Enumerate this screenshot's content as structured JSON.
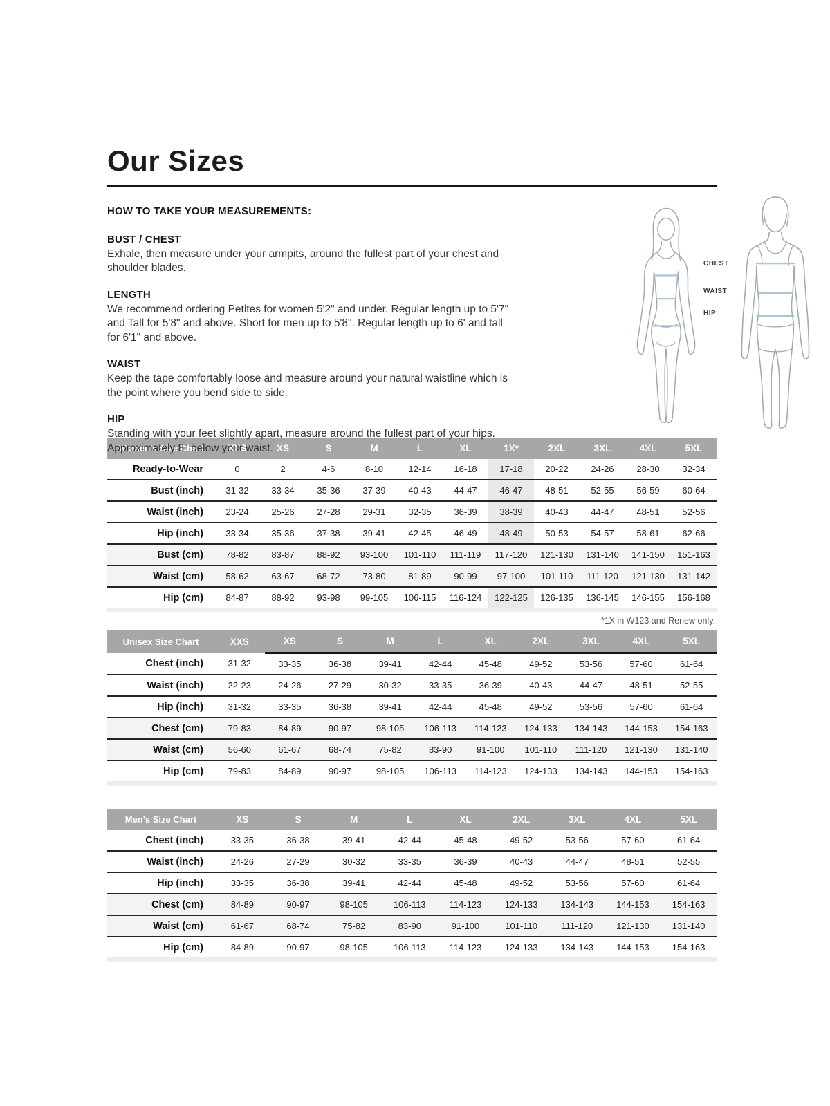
{
  "page_title": "Our Sizes",
  "intro": {
    "heading": "HOW TO TAKE YOUR MEASUREMENTS:",
    "sections": [
      {
        "heading": "BUST / CHEST",
        "body": "Exhale, then measure under your armpits, around the fullest part of your chest and shoulder blades."
      },
      {
        "heading": "LENGTH",
        "body": "We recommend ordering Petites for women 5'2\" and under. Regular length up to 5'7\" and Tall for 5'8\" and above. Short for men up to 5'8\". Regular length up to 6' and tall for 6'1\" and above."
      },
      {
        "heading": "WAIST",
        "body": "Keep the tape comfortably loose and measure around your natural waistline which is the point where you bend side to side."
      },
      {
        "heading": "HIP",
        "body": "Standing with your feet slightly apart, measure around the fullest part of your hips. Approximately 8\" below your waist."
      }
    ]
  },
  "figure": {
    "labels": [
      "CHEST",
      "WAIST",
      "HIP"
    ]
  },
  "tables": {
    "womens": {
      "title": "Women's Size Chart",
      "columns": [
        "XXS",
        "XS",
        "S",
        "M",
        "L",
        "XL",
        "1X*",
        "2XL",
        "3XL",
        "4XL",
        "5XL"
      ],
      "highlight_column_index": 6,
      "rows": [
        {
          "label": "Ready-to-Wear",
          "values": [
            "0",
            "2",
            "4-6",
            "8-10",
            "12-14",
            "16-18",
            "17-18",
            "20-22",
            "24-26",
            "28-30",
            "32-34"
          ],
          "shaded": false
        },
        {
          "label": "Bust (inch)",
          "values": [
            "31-32",
            "33-34",
            "35-36",
            "37-39",
            "40-43",
            "44-47",
            "46-47",
            "48-51",
            "52-55",
            "56-59",
            "60-64"
          ],
          "shaded": false
        },
        {
          "label": "Waist (inch)",
          "values": [
            "23-24",
            "25-26",
            "27-28",
            "29-31",
            "32-35",
            "36-39",
            "38-39",
            "40-43",
            "44-47",
            "48-51",
            "52-56"
          ],
          "shaded": false
        },
        {
          "label": "Hip (inch)",
          "values": [
            "33-34",
            "35-36",
            "37-38",
            "39-41",
            "42-45",
            "46-49",
            "48-49",
            "50-53",
            "54-57",
            "58-61",
            "62-66"
          ],
          "shaded": false
        },
        {
          "label": "Bust (cm)",
          "values": [
            "78-82",
            "83-87",
            "88-92",
            "93-100",
            "101-110",
            "111-119",
            "117-120",
            "121-130",
            "131-140",
            "141-150",
            "151-163"
          ],
          "shaded": true
        },
        {
          "label": "Waist (cm)",
          "values": [
            "58-62",
            "63-67",
            "68-72",
            "73-80",
            "81-89",
            "90-99",
            "97-100",
            "101-110",
            "111-120",
            "121-130",
            "131-142"
          ],
          "shaded": true
        },
        {
          "label": "Hip (cm)",
          "values": [
            "84-87",
            "88-92",
            "93-98",
            "99-105",
            "106-115",
            "116-124",
            "122-125",
            "126-135",
            "136-145",
            "146-155",
            "156-168"
          ],
          "shaded": false
        }
      ],
      "footnote": "*1X in W123 and Renew only."
    },
    "unisex": {
      "title": "Unisex Size Chart",
      "columns": [
        "XXS",
        "XS",
        "S",
        "M",
        "L",
        "XL",
        "2XL",
        "3XL",
        "4XL",
        "5XL"
      ],
      "header_underline_from_index": 1,
      "rows": [
        {
          "label": "Chest (inch)",
          "values": [
            "31-32",
            "33-35",
            "36-38",
            "39-41",
            "42-44",
            "45-48",
            "49-52",
            "53-56",
            "57-60",
            "61-64"
          ],
          "shaded": false
        },
        {
          "label": "Waist (inch)",
          "values": [
            "22-23",
            "24-26",
            "27-29",
            "30-32",
            "33-35",
            "36-39",
            "40-43",
            "44-47",
            "48-51",
            "52-55"
          ],
          "shaded": false
        },
        {
          "label": "Hip (inch)",
          "values": [
            "31-32",
            "33-35",
            "36-38",
            "39-41",
            "42-44",
            "45-48",
            "49-52",
            "53-56",
            "57-60",
            "61-64"
          ],
          "shaded": false
        },
        {
          "label": "Chest (cm)",
          "values": [
            "79-83",
            "84-89",
            "90-97",
            "98-105",
            "106-113",
            "114-123",
            "124-133",
            "134-143",
            "144-153",
            "154-163"
          ],
          "shaded": true
        },
        {
          "label": "Waist (cm)",
          "values": [
            "56-60",
            "61-67",
            "68-74",
            "75-82",
            "83-90",
            "91-100",
            "101-110",
            "111-120",
            "121-130",
            "131-140"
          ],
          "shaded": true
        },
        {
          "label": "Hip (cm)",
          "values": [
            "79-83",
            "84-89",
            "90-97",
            "98-105",
            "106-113",
            "114-123",
            "124-133",
            "134-143",
            "144-153",
            "154-163"
          ],
          "shaded": false
        }
      ]
    },
    "mens": {
      "title": "Men's Size Chart",
      "columns": [
        "XS",
        "S",
        "M",
        "L",
        "XL",
        "2XL",
        "3XL",
        "4XL",
        "5XL"
      ],
      "rows": [
        {
          "label": "Chest (inch)",
          "values": [
            "33-35",
            "36-38",
            "39-41",
            "42-44",
            "45-48",
            "49-52",
            "53-56",
            "57-60",
            "61-64"
          ],
          "shaded": false
        },
        {
          "label": "Waist (inch)",
          "values": [
            "24-26",
            "27-29",
            "30-32",
            "33-35",
            "36-39",
            "40-43",
            "44-47",
            "48-51",
            "52-55"
          ],
          "shaded": false
        },
        {
          "label": "Hip (inch)",
          "values": [
            "33-35",
            "36-38",
            "39-41",
            "42-44",
            "45-48",
            "49-52",
            "53-56",
            "57-60",
            "61-64"
          ],
          "shaded": false
        },
        {
          "label": "Chest (cm)",
          "values": [
            "84-89",
            "90-97",
            "98-105",
            "106-113",
            "114-123",
            "124-133",
            "134-143",
            "144-153",
            "154-163"
          ],
          "shaded": true
        },
        {
          "label": "Waist (cm)",
          "values": [
            "61-67",
            "68-74",
            "75-82",
            "83-90",
            "91-100",
            "101-110",
            "111-120",
            "121-130",
            "131-140"
          ],
          "shaded": true
        },
        {
          "label": "Hip (cm)",
          "values": [
            "84-89",
            "90-97",
            "98-105",
            "106-113",
            "114-123",
            "124-133",
            "134-143",
            "144-153",
            "154-163"
          ],
          "shaded": false
        }
      ]
    }
  },
  "colors": {
    "header_bg": "#a7a7a7",
    "header_text": "#ffffff",
    "row_shaded": "#f3f3f3",
    "column_highlight": "#e9e9e9",
    "row_border": "#242424",
    "bottom_strip": "#ededed",
    "measure_line_blue": "#a9c6d8",
    "figure_outline": "#a4a9ac",
    "text": "#2b2b2b"
  }
}
